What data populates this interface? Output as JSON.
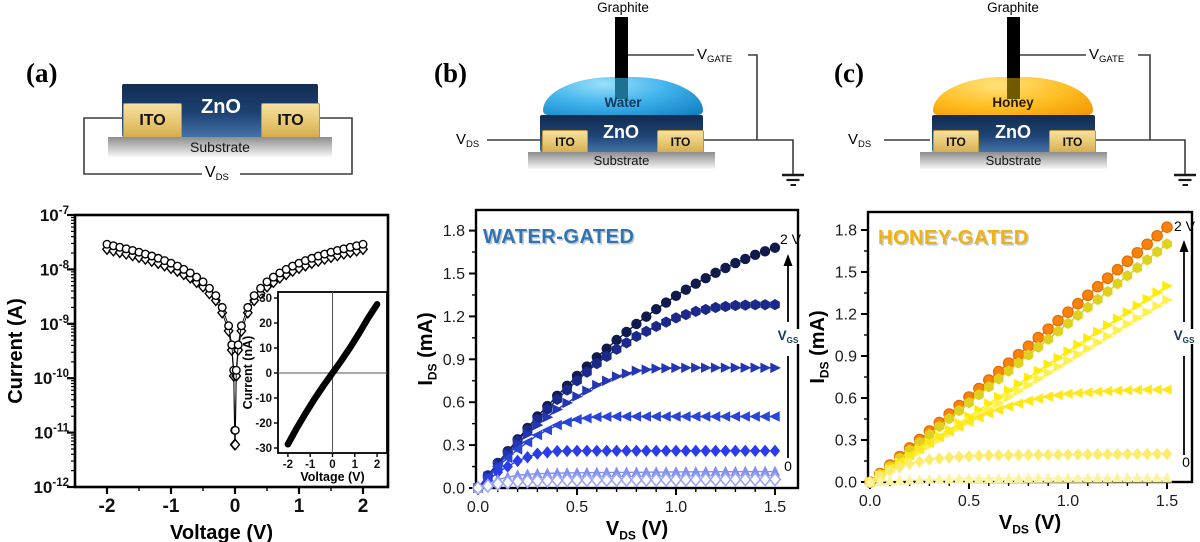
{
  "panels": {
    "a": {
      "label": "(a)",
      "schematic": {
        "zno": "ZnO",
        "ito_left": "ITO",
        "ito_right": "ITO",
        "substrate": "Substrate",
        "vds_base": "V",
        "vds_sub": "DS"
      }
    },
    "b": {
      "label": "(b)",
      "schematic": {
        "graphite": "Graphite",
        "liquid": "Water",
        "zno": "ZnO",
        "ito_left": "ITO",
        "ito_right": "ITO",
        "substrate": "Substrate",
        "vds_base": "V",
        "vds_sub": "DS",
        "vgate_base": "V",
        "vgate_sub": "GATE"
      }
    },
    "c": {
      "label": "(c)",
      "schematic": {
        "graphite": "Graphite",
        "liquid": "Honey",
        "zno": "ZnO",
        "ito_left": "ITO",
        "ito_right": "ITO",
        "substrate": "Substrate",
        "vds_base": "V",
        "vds_sub": "DS",
        "vgate_base": "V",
        "vgate_sub": "GATE"
      }
    }
  },
  "chart_data": [
    {
      "type": "scatter",
      "panel": "a",
      "xlabel": "Voltage (V)",
      "ylabel": "Current (A)",
      "yscale": "log",
      "ylim_exp": [
        -12,
        -7
      ],
      "xlim": [
        -2.5,
        2.5
      ],
      "xticks": {
        "values": [
          -2,
          -1,
          0,
          1,
          2
        ],
        "labels": [
          "-2",
          "-1",
          "0",
          "1",
          "2"
        ]
      },
      "yticks_exp": [
        -7,
        -8,
        -9,
        -10,
        -11,
        -12
      ],
      "series": [
        {
          "name": "sweep 1",
          "marker": "circle-open",
          "color": "#000000",
          "x": [
            -2.0,
            -1.9,
            -1.8,
            -1.7,
            -1.6,
            -1.5,
            -1.4,
            -1.3,
            -1.2,
            -1.1,
            -1.0,
            -0.9,
            -0.8,
            -0.7,
            -0.6,
            -0.5,
            -0.4,
            -0.3,
            -0.2,
            -0.1,
            -0.05,
            -0.02,
            -0.004,
            0.004,
            0.02,
            0.05,
            0.1,
            0.2,
            0.3,
            0.4,
            0.5,
            0.6,
            0.7,
            0.8,
            0.9,
            1.0,
            1.1,
            1.2,
            1.3,
            1.4,
            1.5,
            1.6,
            1.7,
            1.8,
            1.9,
            2.0
          ],
          "y": [
            2.9e-08,
            2.72e-08,
            2.55e-08,
            2.39e-08,
            2.23e-08,
            2.07e-08,
            1.91e-08,
            1.76e-08,
            1.6e-08,
            1.45e-08,
            1.3e-08,
            1.15e-08,
            1e-08,
            8.6e-09,
            7.2e-09,
            5.9e-09,
            4.5e-09,
            3.3e-09,
            2e-09,
            9.2e-10,
            4.1e-10,
            1.4e-10,
            1.1e-11,
            1.1e-11,
            1.4e-10,
            4.1e-10,
            9.2e-10,
            2e-09,
            3.3e-09,
            4.5e-09,
            5.9e-09,
            7.2e-09,
            8.6e-09,
            1e-08,
            1.15e-08,
            1.3e-08,
            1.45e-08,
            1.6e-08,
            1.76e-08,
            1.91e-08,
            2.07e-08,
            2.23e-08,
            2.39e-08,
            2.55e-08,
            2.72e-08,
            2.9e-08
          ]
        },
        {
          "name": "sweep 2",
          "marker": "diamond-open",
          "color": "#000000",
          "x": [
            -2.0,
            -1.9,
            -1.8,
            -1.7,
            -1.6,
            -1.5,
            -1.4,
            -1.3,
            -1.2,
            -1.1,
            -1.0,
            -0.9,
            -0.8,
            -0.7,
            -0.6,
            -0.5,
            -0.4,
            -0.3,
            -0.2,
            -0.1,
            -0.05,
            -0.02,
            -0.004,
            0.004,
            0.02,
            0.05,
            0.1,
            0.2,
            0.3,
            0.4,
            0.5,
            0.6,
            0.7,
            0.8,
            0.9,
            1.0,
            1.1,
            1.2,
            1.3,
            1.4,
            1.5,
            1.6,
            1.7,
            1.8,
            1.9,
            2.0
          ],
          "y": [
            2.35e-08,
            2.2e-08,
            2.06e-08,
            1.93e-08,
            1.8e-08,
            1.67e-08,
            1.55e-08,
            1.42e-08,
            1.3e-08,
            1.17e-08,
            1.05e-08,
            9.3e-09,
            8.1e-09,
            7e-09,
            5.8e-09,
            4.8e-09,
            3.6e-09,
            2.7e-09,
            1.6e-09,
            7.4e-10,
            3.3e-10,
            1.1e-10,
            6e-12,
            6e-12,
            1.1e-10,
            3.3e-10,
            7.4e-10,
            1.6e-09,
            2.7e-09,
            3.6e-09,
            4.8e-09,
            5.8e-09,
            7e-09,
            8.1e-09,
            9.3e-09,
            1.05e-08,
            1.17e-08,
            1.3e-08,
            1.42e-08,
            1.55e-08,
            1.67e-08,
            1.8e-08,
            1.93e-08,
            2.06e-08,
            2.2e-08,
            2.35e-08
          ]
        }
      ],
      "inset": {
        "xlabel": "Voltage (V)",
        "ylabel": "Current (nA)",
        "xticks": {
          "values": [
            -2,
            -1,
            0,
            1,
            2
          ],
          "labels": [
            "-2",
            "-1",
            "0",
            "1",
            "2"
          ]
        },
        "yticks": {
          "values": [
            30,
            20,
            10,
            0,
            -10,
            -20,
            -30
          ],
          "labels": [
            "30",
            "20",
            "10",
            "0",
            "-10",
            "-20",
            "-30"
          ]
        },
        "x": [
          -2,
          -1.6,
          -1.2,
          -0.8,
          -0.4,
          0,
          0.4,
          0.8,
          1.2,
          1.6,
          2
        ],
        "y": [
          -28.5,
          -22,
          -16,
          -10.3,
          -5,
          0,
          5,
          10.3,
          16,
          22,
          27.5
        ]
      }
    },
    {
      "type": "scatter",
      "panel": "b",
      "title": "WATER-GATED",
      "title_color": "#2e74b5",
      "xlabel": {
        "base": "V",
        "sub": "DS",
        "suffix": " (V)"
      },
      "ylabel": {
        "base": "I",
        "sub": "DS",
        "suffix": " (mA)"
      },
      "xlim": [
        0,
        1.62
      ],
      "ylim": [
        0,
        1.94
      ],
      "xticks": {
        "values": [
          0,
          0.5,
          1,
          1.5
        ],
        "labels": [
          "0.0",
          "0.5",
          "1.0",
          "1.5"
        ]
      },
      "yticks": {
        "values": [
          0,
          0.3,
          0.6,
          0.9,
          1.2,
          1.5,
          1.8
        ],
        "labels": [
          "0.0",
          "0.3",
          "0.6",
          "0.9",
          "1.2",
          "1.5",
          "1.8"
        ]
      },
      "x": [
        0,
        0.1,
        0.2,
        0.3,
        0.4,
        0.5,
        0.6,
        0.7,
        0.8,
        0.9,
        1.0,
        1.1,
        1.2,
        1.3,
        1.4,
        1.5
      ],
      "series": [
        {
          "vgs": "2 V",
          "marker": "circle",
          "color": "#111a4d",
          "values": [
            0,
            0.175,
            0.34,
            0.5,
            0.645,
            0.784,
            0.914,
            1.035,
            1.147,
            1.25,
            1.344,
            1.429,
            1.505,
            1.573,
            1.631,
            1.68
          ]
        },
        {
          "vgs": "",
          "marker": "hexagon",
          "color": "#1b2a8a",
          "values": [
            0,
            0.17,
            0.33,
            0.48,
            0.62,
            0.75,
            0.87,
            0.97,
            1.06,
            1.13,
            1.19,
            1.235,
            1.262,
            1.276,
            1.281,
            1.282
          ]
        },
        {
          "vgs": "",
          "marker": "tri-right",
          "color": "#2336b4",
          "values": [
            0,
            0.16,
            0.31,
            0.44,
            0.55,
            0.64,
            0.72,
            0.78,
            0.82,
            0.835,
            0.84,
            0.841,
            0.841,
            0.841,
            0.841,
            0.84
          ]
        },
        {
          "vgs": "",
          "marker": "tri-left",
          "color": "#2944d8",
          "values": [
            0,
            0.15,
            0.27,
            0.37,
            0.44,
            0.48,
            0.497,
            0.5,
            0.5,
            0.5,
            0.5,
            0.5,
            0.5,
            0.5,
            0.5,
            0.5
          ]
        },
        {
          "vgs": "",
          "marker": "diamond",
          "color": "#2b3cec",
          "values": [
            0,
            0.11,
            0.19,
            0.24,
            0.258,
            0.26,
            0.26,
            0.26,
            0.26,
            0.26,
            0.26,
            0.26,
            0.26,
            0.26,
            0.26,
            0.26
          ]
        },
        {
          "vgs": "",
          "marker": "tri-up",
          "color": "#8390f3",
          "values": [
            0,
            0.06,
            0.09,
            0.1,
            0.104,
            0.106,
            0.108,
            0.109,
            0.11,
            0.111,
            0.112,
            0.113,
            0.114,
            0.114,
            0.115,
            0.115
          ]
        },
        {
          "vgs": "0",
          "marker": "diamond-open",
          "color": "#9aa6f5",
          "values": [
            0,
            0.03,
            0.045,
            0.05,
            0.053,
            0.055,
            0.056,
            0.057,
            0.057,
            0.058,
            0.058,
            0.059,
            0.059,
            0.06,
            0.06,
            0.06
          ]
        }
      ],
      "annotations": {
        "top_label": "2 V",
        "bottom_label": "0",
        "arrow_base": "V",
        "arrow_sub": "GS",
        "label_color": "#17375e"
      }
    },
    {
      "type": "scatter",
      "panel": "c",
      "title": "HONEY-GATED",
      "title_color": "#f0b20d",
      "xlabel": {
        "base": "V",
        "sub": "DS",
        "suffix": " (V)"
      },
      "ylabel": {
        "base": "I",
        "sub": "DS",
        "suffix": " (mA)"
      },
      "xlim": [
        0,
        1.62
      ],
      "ylim": [
        0,
        1.94
      ],
      "xticks": {
        "values": [
          0,
          0.5,
          1,
          1.5
        ],
        "labels": [
          "0.0",
          "0.5",
          "1.0",
          "1.5"
        ]
      },
      "yticks": {
        "values": [
          0,
          0.3,
          0.6,
          0.9,
          1.2,
          1.5,
          1.8
        ],
        "labels": [
          "0.0",
          "0.3",
          "0.6",
          "0.9",
          "1.2",
          "1.5",
          "1.8"
        ]
      },
      "x": [
        0,
        0.1,
        0.2,
        0.3,
        0.4,
        0.5,
        0.6,
        0.7,
        0.8,
        0.9,
        1.0,
        1.1,
        1.2,
        1.3,
        1.4,
        1.5
      ],
      "series": [
        {
          "vgs": "2 V",
          "marker": "circle",
          "color": "#f8820e",
          "edge": "#e56d00",
          "values": [
            0,
            0.121,
            0.243,
            0.364,
            0.485,
            0.607,
            0.728,
            0.849,
            0.97,
            1.092,
            1.213,
            1.334,
            1.456,
            1.577,
            1.698,
            1.82
          ]
        },
        {
          "vgs": "",
          "marker": "hexagon",
          "color": "#ded21f",
          "values": [
            0,
            0.113,
            0.227,
            0.34,
            0.453,
            0.567,
            0.68,
            0.793,
            0.907,
            1.02,
            1.133,
            1.247,
            1.36,
            1.473,
            1.587,
            1.7
          ]
        },
        {
          "vgs": "",
          "marker": "tri-right",
          "color": "#ffec00",
          "values": [
            0,
            0.093,
            0.187,
            0.28,
            0.373,
            0.467,
            0.56,
            0.653,
            0.747,
            0.84,
            0.933,
            1.027,
            1.12,
            1.213,
            1.307,
            1.4
          ]
        },
        {
          "vgs": "",
          "marker": "tri-right",
          "color": "#fff14d",
          "values": [
            0,
            0.087,
            0.173,
            0.26,
            0.347,
            0.433,
            0.52,
            0.607,
            0.693,
            0.78,
            0.867,
            0.953,
            1.04,
            1.127,
            1.213,
            1.3
          ]
        },
        {
          "vgs": "",
          "marker": "tri-left",
          "color": "#ffe71c",
          "values": [
            0,
            0.1,
            0.19,
            0.28,
            0.36,
            0.43,
            0.49,
            0.54,
            0.58,
            0.61,
            0.63,
            0.64,
            0.65,
            0.655,
            0.66,
            0.66
          ]
        },
        {
          "vgs": "",
          "marker": "diamond",
          "color": "#fcec6e",
          "values": [
            0,
            0.08,
            0.13,
            0.16,
            0.175,
            0.185,
            0.19,
            0.192,
            0.194,
            0.195,
            0.196,
            0.197,
            0.198,
            0.199,
            0.2,
            0.2
          ]
        },
        {
          "vgs": "0",
          "marker": "tri-up",
          "color": "#faf3a2",
          "values": [
            0,
            0.01,
            0.015,
            0.02,
            0.022,
            0.024,
            0.025,
            0.026,
            0.027,
            0.028,
            0.028,
            0.029,
            0.029,
            0.03,
            0.03,
            0.03
          ]
        }
      ],
      "annotations": {
        "top_label": "2 V",
        "bottom_label": "0",
        "arrow_base": "V",
        "arrow_sub": "GS",
        "label_color": "#17375e"
      }
    }
  ]
}
